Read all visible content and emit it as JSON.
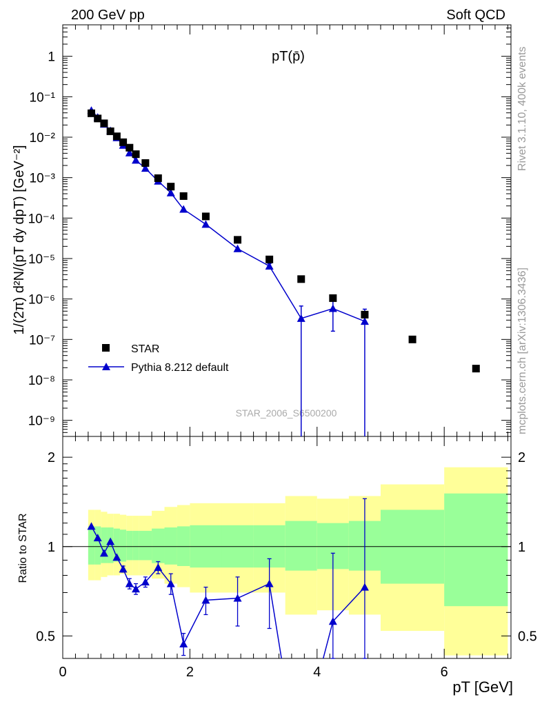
{
  "header": {
    "left": "200 GeV pp",
    "right": "Soft QCD",
    "title": "pT(p̄)"
  },
  "side_labels": {
    "rivet": "Rivet 3.1.10,  400k events",
    "mcplots": "mcplots.cern.ch [arXiv:1306.3436]"
  },
  "watermark": "STAR_2006_S6500200",
  "legend": {
    "data_label": "STAR",
    "mc_label": "Pythia 8.212 default"
  },
  "axes": {
    "ylabel_main": "1/(2π) d²N/(pT dy dpT) [GeV⁻²]",
    "ylabel_ratio": "Ratio to STAR",
    "xlabel": "pT [GeV]",
    "x_ticks": [
      "0",
      "2",
      "4",
      "6"
    ],
    "y_ticks_main": [
      "1",
      "10⁻¹",
      "10⁻²",
      "10⁻³",
      "10⁻⁴",
      "10⁻⁵",
      "10⁻⁶",
      "10⁻⁷",
      "10⁻⁸",
      "10⁻⁹"
    ],
    "y_ticks_ratio": [
      "0.5",
      "1",
      "2"
    ]
  },
  "colors": {
    "mc": "#0000cc",
    "band_inner": "#99ff99",
    "band_outer": "#ffff99",
    "data": "#000000"
  },
  "chart_data": [
    {
      "type": "scatter",
      "name": "main",
      "xlim": [
        0,
        7.05
      ],
      "ylim": [
        4e-10,
        6
      ],
      "yscale": "log",
      "series": [
        {
          "name": "STAR",
          "x": [
            0.45,
            0.55,
            0.65,
            0.75,
            0.85,
            0.95,
            1.05,
            1.15,
            1.3,
            1.5,
            1.7,
            1.9,
            2.25,
            2.75,
            3.25,
            3.75,
            4.25,
            4.75,
            5.5,
            6.5
          ],
          "y": [
            0.039,
            0.029,
            0.022,
            0.014,
            0.0105,
            0.0075,
            0.0055,
            0.0038,
            0.0023,
            0.00097,
            0.0006,
            0.00035,
            0.00011,
            2.9e-05,
            9.5e-06,
            3.1e-06,
            1.05e-06,
            4.1e-07,
            1e-07,
            1.9e-08
          ]
        },
        {
          "name": "Pythia 8.212 default",
          "x": [
            0.45,
            0.55,
            0.65,
            0.75,
            0.85,
            0.95,
            1.05,
            1.15,
            1.3,
            1.5,
            1.7,
            1.9,
            2.25,
            2.75,
            3.25,
            3.75,
            4.25,
            4.75
          ],
          "y": [
            0.046,
            0.031,
            0.021,
            0.0145,
            0.0097,
            0.0063,
            0.0041,
            0.0027,
            0.0017,
            0.00082,
            0.00042,
            0.000165,
            7e-05,
            1.75e-05,
            6.5e-06,
            3.3e-07,
            5.8e-07,
            2.8e-07
          ],
          "yerr_low": [
            0,
            0,
            0,
            0,
            0,
            0,
            0,
            0,
            0,
            0,
            0,
            0,
            0,
            0,
            1e-06,
            3.3e-07,
            4.2e-07,
            2.8e-07
          ],
          "yerr_high": [
            0,
            0,
            0,
            0,
            0,
            0,
            0,
            0,
            0,
            0,
            0,
            0,
            0,
            0,
            1e-06,
            3.4e-07,
            4.2e-07,
            2.8e-07
          ]
        }
      ]
    },
    {
      "type": "line",
      "name": "ratio",
      "xlim": [
        0,
        7.05
      ],
      "ylim": [
        0.42,
        2.35
      ],
      "yscale": "log",
      "bands": {
        "x_edges": [
          0.4,
          0.5,
          0.6,
          0.7,
          0.8,
          0.9,
          1.0,
          1.1,
          1.2,
          1.4,
          1.6,
          1.8,
          2.0,
          2.5,
          3.0,
          3.5,
          4.0,
          4.5,
          5.0,
          6.0,
          7.0
        ],
        "inner_low": [
          0.87,
          0.87,
          0.88,
          0.88,
          0.89,
          0.89,
          0.9,
          0.9,
          0.9,
          0.88,
          0.87,
          0.86,
          0.85,
          0.85,
          0.85,
          0.83,
          0.84,
          0.83,
          0.75,
          0.63
        ],
        "inner_high": [
          1.17,
          1.17,
          1.16,
          1.16,
          1.15,
          1.14,
          1.13,
          1.13,
          1.13,
          1.15,
          1.16,
          1.17,
          1.18,
          1.18,
          1.18,
          1.22,
          1.2,
          1.22,
          1.33,
          1.51
        ],
        "outer_low": [
          0.77,
          0.77,
          0.79,
          0.8,
          0.8,
          0.81,
          0.8,
          0.8,
          0.8,
          0.78,
          0.75,
          0.73,
          0.7,
          0.7,
          0.7,
          0.59,
          0.61,
          0.59,
          0.52,
          0.43
        ],
        "outer_high": [
          1.33,
          1.33,
          1.31,
          1.29,
          1.29,
          1.28,
          1.27,
          1.27,
          1.27,
          1.32,
          1.36,
          1.38,
          1.4,
          1.4,
          1.4,
          1.48,
          1.45,
          1.48,
          1.62,
          1.85
        ]
      },
      "series": [
        {
          "name": "Pythia 8.212 default",
          "x": [
            0.45,
            0.55,
            0.65,
            0.75,
            0.85,
            0.95,
            1.05,
            1.15,
            1.3,
            1.5,
            1.7,
            1.9,
            2.25,
            2.75,
            3.25,
            3.5,
            4.0,
            4.25,
            4.75
          ],
          "y": [
            1.17,
            1.07,
            0.95,
            1.04,
            0.92,
            0.84,
            0.75,
            0.72,
            0.76,
            0.85,
            0.75,
            0.47,
            0.66,
            0.67,
            0.75,
            0.35,
            0.35,
            0.56,
            0.73
          ],
          "yerr_low": [
            0,
            0,
            0,
            0,
            0,
            0.02,
            0.03,
            0.03,
            0.03,
            0.04,
            0.06,
            0.04,
            0.07,
            0.13,
            0.22,
            0,
            0,
            0.22,
            0.4
          ],
          "yerr_high": [
            0,
            0,
            0,
            0,
            0,
            0.02,
            0.03,
            0.03,
            0.03,
            0.04,
            0.06,
            0.04,
            0.07,
            0.12,
            0.16,
            0,
            0,
            0.39,
            0.72
          ],
          "drawn_marker": [
            1,
            1,
            1,
            1,
            1,
            1,
            1,
            1,
            1,
            1,
            1,
            1,
            1,
            1,
            1,
            0,
            0,
            1,
            1
          ]
        }
      ]
    }
  ]
}
